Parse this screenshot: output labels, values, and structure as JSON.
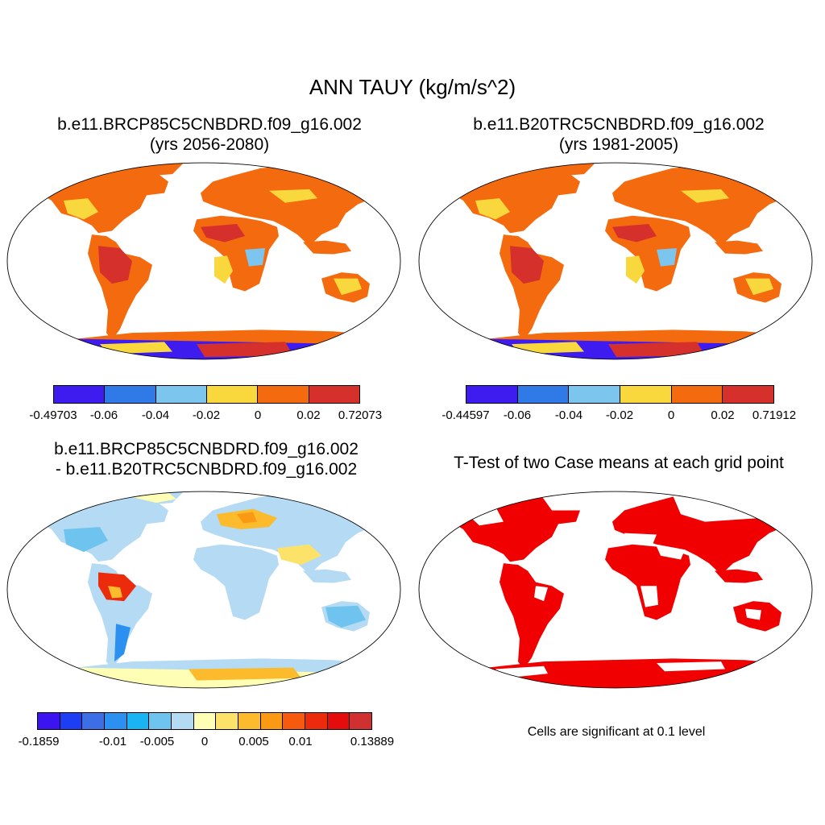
{
  "title": "ANN TAUY (kg/m/s^2)",
  "panels": [
    {
      "line1": "b.e11.BRCP85C5CNBDRD.f09_g16.002",
      "line2": "(yrs 2056-2080)"
    },
    {
      "line1": "b.e11.B20TRC5CNBDRD.f09_g16.002",
      "line2": "(yrs 1981-2005)"
    },
    {
      "line1": "b.e11.BRCP85C5CNBDRD.f09_g16.002",
      "line2": "- b.e11.B20TRC5CNBDRD.f09_g16.002"
    },
    {
      "line1": "T-Test of two Case means at each grid point"
    }
  ],
  "colorbars": {
    "a": {
      "colors": [
        "#3e1cf0",
        "#2f7ae6",
        "#7cc5ee",
        "#f9d83d",
        "#f46a0e",
        "#d5302c"
      ],
      "labels": [
        "-0.49703",
        "-0.06",
        "-0.04",
        "-0.02",
        "0",
        "0.02",
        "0.72073"
      ]
    },
    "b": {
      "colors": [
        "#3e1cf0",
        "#2f7ae6",
        "#7cc5ee",
        "#f9d83d",
        "#f46a0e",
        "#d5302c"
      ],
      "labels": [
        "-0.44597",
        "-0.06",
        "-0.04",
        "-0.02",
        "0",
        "0.02",
        "0.71912"
      ]
    },
    "c": {
      "colors": [
        "#3c14f2",
        "#1e3ef5",
        "#3c6ee6",
        "#2c90f0",
        "#1ab4f2",
        "#6ec4ee",
        "#b4daf4",
        "#fefeb4",
        "#fde26a",
        "#fcbb2c",
        "#fa9a14",
        "#f65a0e",
        "#ec2a0c",
        "#e40c0c",
        "#d03030"
      ],
      "labels": [
        "-0.1859",
        "-0.01",
        "-0.005",
        "0",
        "0.005",
        "0.01",
        "0.13889"
      ]
    }
  },
  "significance_note": "Cells are significant at 0.1 level"
}
